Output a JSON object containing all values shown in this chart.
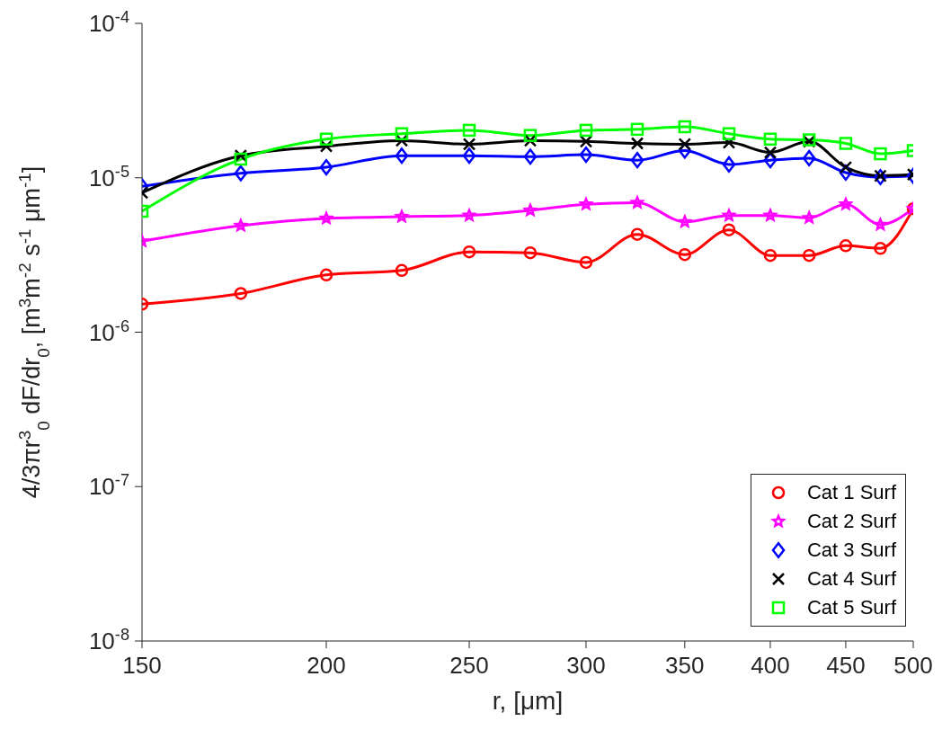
{
  "chart_data": {
    "type": "line",
    "xlabel": "r, [μm]",
    "ylabel": "4/3πr$^{3}$$_{0}$ dF/dr$_{0}$, [m$^{3}$m$^{-2}$ s$^{-1}$ μm$^{-1}$]",
    "x": [
      150,
      175,
      200,
      225,
      250,
      275,
      300,
      325,
      350,
      375,
      400,
      425,
      450,
      475,
      500
    ],
    "series": [
      {
        "name": "Cat 1 Surf",
        "color": "#ff0000",
        "marker": "circle",
        "values": [
          1.52e-06,
          1.78e-06,
          2.35e-06,
          2.51e-06,
          3.31e-06,
          3.27e-06,
          2.83e-06,
          4.3e-06,
          3.18e-06,
          4.6e-06,
          3.14e-06,
          3.14e-06,
          3.63e-06,
          3.49e-06,
          6.3e-06
        ]
      },
      {
        "name": "Cat 2 Surf",
        "color": "#ff00ff",
        "marker": "star",
        "values": [
          3.88e-06,
          4.9e-06,
          5.46e-06,
          5.6e-06,
          5.7e-06,
          6.15e-06,
          6.74e-06,
          6.9e-06,
          5.18e-06,
          5.7e-06,
          5.7e-06,
          5.5e-06,
          6.74e-06,
          4.97e-06,
          6.3e-06
        ]
      },
      {
        "name": "Cat 3 Surf",
        "color": "#0000ff",
        "marker": "diamond",
        "values": [
          8.8e-06,
          1.07e-05,
          1.17e-05,
          1.39e-05,
          1.39e-05,
          1.37e-05,
          1.41e-05,
          1.3e-05,
          1.5e-05,
          1.22e-05,
          1.3e-05,
          1.34e-05,
          1.08e-05,
          1.01e-05,
          1.03e-05
        ]
      },
      {
        "name": "Cat 4 Surf",
        "color": "#000000",
        "marker": "cross",
        "values": [
          8e-06,
          1.39e-05,
          1.6e-05,
          1.74e-05,
          1.65e-05,
          1.74e-05,
          1.72e-05,
          1.67e-05,
          1.65e-05,
          1.69e-05,
          1.46e-05,
          1.72e-05,
          1.17e-05,
          1.03e-05,
          1.05e-05
        ]
      },
      {
        "name": "Cat 5 Surf",
        "color": "#00ff00",
        "marker": "square",
        "values": [
          6.07e-06,
          1.32e-05,
          1.78e-05,
          1.93e-05,
          2.03e-05,
          1.88e-05,
          2.03e-05,
          2.06e-05,
          2.14e-05,
          1.93e-05,
          1.78e-05,
          1.76e-05,
          1.67e-05,
          1.43e-05,
          1.5e-05
        ]
      }
    ],
    "log": "xy",
    "xlim": [
      150,
      500
    ],
    "xticks": [
      150,
      200,
      250,
      300,
      350,
      400,
      450,
      500
    ],
    "ylim": [
      1e-08,
      0.0001
    ],
    "yticks": [
      {
        "value": 1e-08,
        "label": "10$^{-8}$"
      },
      {
        "value": 1e-07,
        "label": "10$^{-7}$"
      },
      {
        "value": 1e-06,
        "label": "10$^{-6}$"
      },
      {
        "value": 1e-05,
        "label": "10$^{-5}$"
      },
      {
        "value": 0.0001,
        "label": "10$^{-4}$"
      }
    ],
    "grid": false,
    "legend": "bottom right"
  }
}
